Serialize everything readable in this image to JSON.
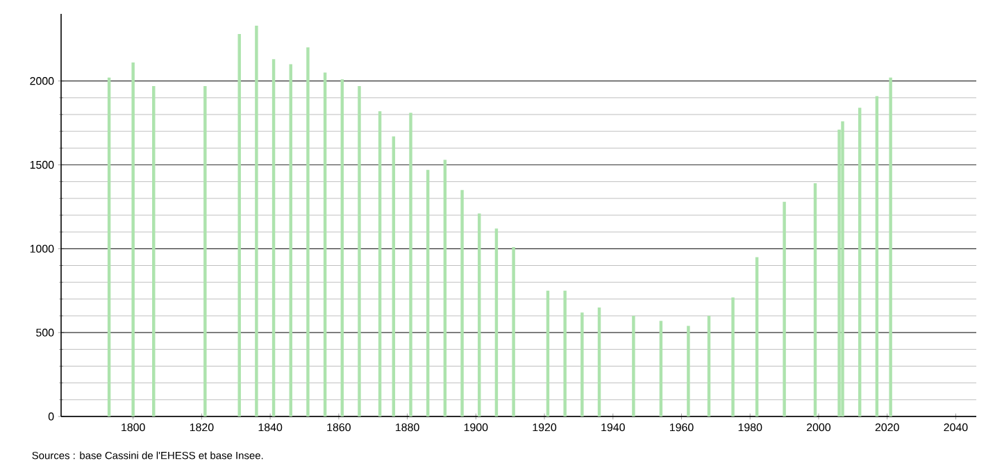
{
  "chart_data": {
    "type": "bar",
    "x": [
      1793,
      1800,
      1806,
      1821,
      1831,
      1836,
      1841,
      1846,
      1851,
      1856,
      1861,
      1866,
      1872,
      1876,
      1881,
      1886,
      1891,
      1896,
      1901,
      1906,
      1911,
      1921,
      1926,
      1931,
      1936,
      1946,
      1954,
      1962,
      1968,
      1975,
      1982,
      1990,
      1999,
      2006,
      2007,
      2012,
      2017,
      2021
    ],
    "values": [
      2020,
      2110,
      1970,
      1970,
      2280,
      2330,
      2130,
      2100,
      2200,
      2050,
      2010,
      1970,
      1820,
      1670,
      1810,
      1470,
      1530,
      1350,
      1210,
      1120,
      1010,
      750,
      750,
      620,
      650,
      600,
      570,
      540,
      600,
      710,
      950,
      1280,
      1390,
      1710,
      1760,
      1840,
      1910,
      2020
    ],
    "color": "#ade3ad",
    "xlim": [
      1779,
      2046
    ],
    "ylim": [
      0,
      2400
    ],
    "xticks": [
      1800,
      1820,
      1840,
      1860,
      1880,
      1900,
      1920,
      1940,
      1960,
      1980,
      2000,
      2020,
      2040
    ],
    "yticks": [
      0,
      500,
      1000,
      1500,
      2000
    ],
    "grid": "y",
    "annotations": [
      "Sources : base Cassini de l'EHESS et base Insee."
    ]
  }
}
